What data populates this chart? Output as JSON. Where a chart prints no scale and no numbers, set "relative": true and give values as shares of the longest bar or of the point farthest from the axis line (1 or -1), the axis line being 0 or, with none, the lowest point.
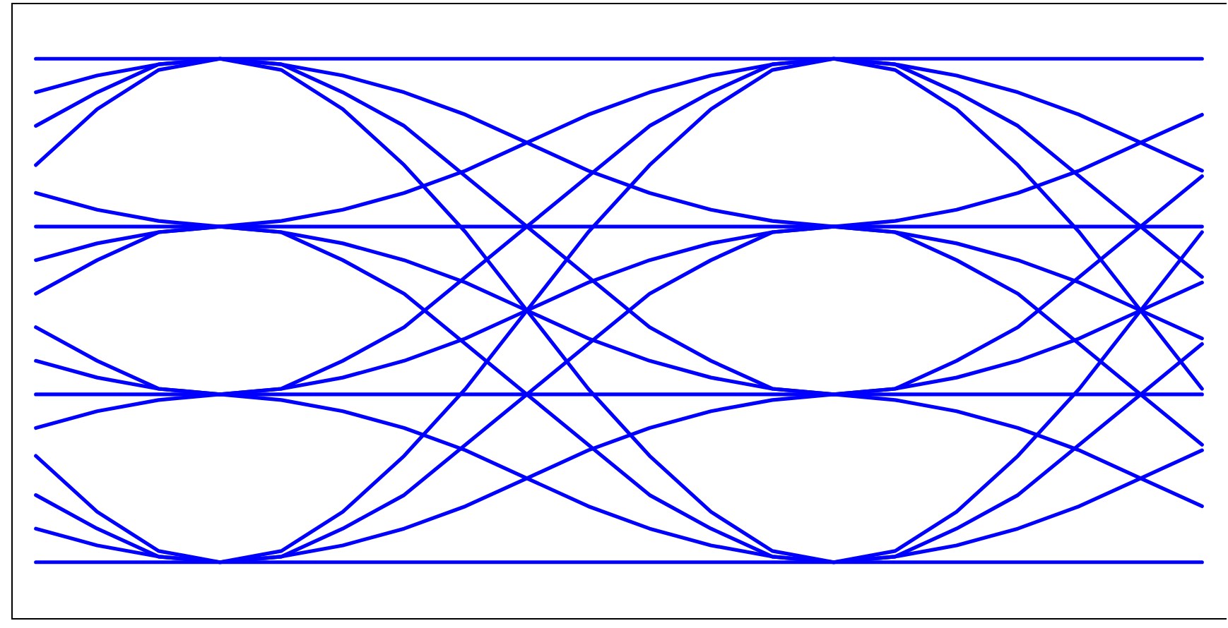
{
  "chart_data": {
    "type": "line",
    "relative": true,
    "marker": "none",
    "line_style": "solid",
    "grid": false,
    "categories": [
      null,
      null,
      null,
      null,
      null,
      null,
      null,
      null,
      null,
      null,
      null,
      null,
      null,
      null,
      null,
      null,
      null,
      null,
      null,
      null
    ],
    "series": [
      {
        "color": "#0000ff",
        "values": [
          0.16,
          0.13,
          0.11,
          0.1,
          0.11,
          0.13,
          0.16,
          0.2,
          0.25,
          0.3,
          0.34,
          0.37,
          0.39,
          0.4,
          0.39,
          0.37,
          0.34,
          0.3,
          0.25,
          0.2
        ]
      },
      {
        "color": "#0000ff",
        "values": [
          0.22,
          0.16,
          0.11,
          0.1,
          0.11,
          0.16,
          0.22,
          0.31,
          0.4,
          0.49,
          0.58,
          0.64,
          0.69,
          0.7,
          0.69,
          0.64,
          0.58,
          0.49,
          0.4,
          0.31
        ]
      },
      {
        "color": "#0000ff",
        "values": [
          0.29,
          0.19,
          0.12,
          0.1,
          0.12,
          0.19,
          0.29,
          0.41,
          0.55,
          0.69,
          0.81,
          0.91,
          0.98,
          1,
          0.98,
          0.91,
          0.81,
          0.69,
          0.55,
          0.41
        ]
      },
      {
        "color": "#0000ff",
        "values": [
          0.34,
          0.37,
          0.39,
          0.4,
          0.39,
          0.37,
          0.34,
          0.3,
          0.25,
          0.2,
          0.16,
          0.13,
          0.11,
          0.1,
          0.11,
          0.13,
          0.16,
          0.2,
          0.25,
          0.3
        ]
      },
      {
        "color": "#0000ff",
        "values": [
          0.46,
          0.43,
          0.41,
          0.4,
          0.41,
          0.43,
          0.46,
          0.5,
          0.55,
          0.6,
          0.64,
          0.67,
          0.69,
          0.7,
          0.69,
          0.67,
          0.64,
          0.6,
          0.55,
          0.5
        ]
      },
      {
        "color": "#0000ff",
        "values": [
          0.52,
          0.46,
          0.41,
          0.4,
          0.41,
          0.46,
          0.52,
          0.61,
          0.7,
          0.79,
          0.88,
          0.94,
          0.99,
          1,
          0.99,
          0.94,
          0.88,
          0.79,
          0.7,
          0.61
        ]
      },
      {
        "color": "#0000ff",
        "values": [
          0.58,
          0.64,
          0.69,
          0.7,
          0.69,
          0.64,
          0.58,
          0.49,
          0.4,
          0.31,
          0.22,
          0.16,
          0.11,
          0.1,
          0.11,
          0.16,
          0.22,
          0.31,
          0.4,
          0.49
        ]
      },
      {
        "color": "#0000ff",
        "values": [
          0.64,
          0.67,
          0.69,
          0.7,
          0.69,
          0.67,
          0.64,
          0.6,
          0.55,
          0.5,
          0.46,
          0.43,
          0.41,
          0.4,
          0.41,
          0.43,
          0.46,
          0.5,
          0.55,
          0.6
        ]
      },
      {
        "color": "#0000ff",
        "values": [
          0.76,
          0.73,
          0.71,
          0.7,
          0.71,
          0.73,
          0.76,
          0.8,
          0.85,
          0.9,
          0.94,
          0.97,
          0.99,
          1,
          0.99,
          0.97,
          0.94,
          0.9,
          0.85,
          0.8
        ]
      },
      {
        "color": "#0000ff",
        "values": [
          0.81,
          0.91,
          0.98,
          1,
          0.98,
          0.91,
          0.81,
          0.69,
          0.55,
          0.41,
          0.29,
          0.19,
          0.12,
          0.1,
          0.12,
          0.19,
          0.29,
          0.41,
          0.55,
          0.69
        ]
      },
      {
        "color": "#0000ff",
        "values": [
          0.88,
          0.94,
          0.99,
          1,
          0.99,
          0.94,
          0.88,
          0.79,
          0.7,
          0.61,
          0.52,
          0.46,
          0.41,
          0.4,
          0.41,
          0.46,
          0.52,
          0.61,
          0.7,
          0.79
        ]
      },
      {
        "color": "#0000ff",
        "values": [
          0.94,
          0.97,
          0.99,
          1,
          0.99,
          0.97,
          0.94,
          0.9,
          0.85,
          0.8,
          0.76,
          0.73,
          0.71,
          0.7,
          0.71,
          0.73,
          0.76,
          0.8,
          0.85,
          0.9
        ]
      },
      {
        "color": "#0000ff",
        "values": [
          0.1,
          0.1,
          0.1,
          0.1,
          0.1,
          0.1,
          0.1,
          0.1,
          0.1,
          0.1,
          0.1,
          0.1,
          0.1,
          0.1,
          0.1,
          0.1,
          0.1,
          0.1,
          0.1,
          0.1
        ]
      },
      {
        "color": "#0000ff",
        "values": [
          0.4,
          0.4,
          0.4,
          0.4,
          0.4,
          0.4,
          0.4,
          0.4,
          0.4,
          0.4,
          0.4,
          0.4,
          0.4,
          0.4,
          0.4,
          0.4,
          0.4,
          0.4,
          0.4,
          0.4
        ]
      },
      {
        "color": "#0000ff",
        "values": [
          0.7,
          0.7,
          0.7,
          0.7,
          0.7,
          0.7,
          0.7,
          0.7,
          0.7,
          0.7,
          0.7,
          0.7,
          0.7,
          0.7,
          0.7,
          0.7,
          0.7,
          0.7,
          0.7,
          0.7
        ]
      },
      {
        "color": "#0000ff",
        "values": [
          1,
          1,
          1,
          1,
          1,
          1,
          1,
          1,
          1,
          1,
          1,
          1,
          1,
          1,
          1,
          1,
          1,
          1,
          1,
          1
        ]
      }
    ]
  }
}
